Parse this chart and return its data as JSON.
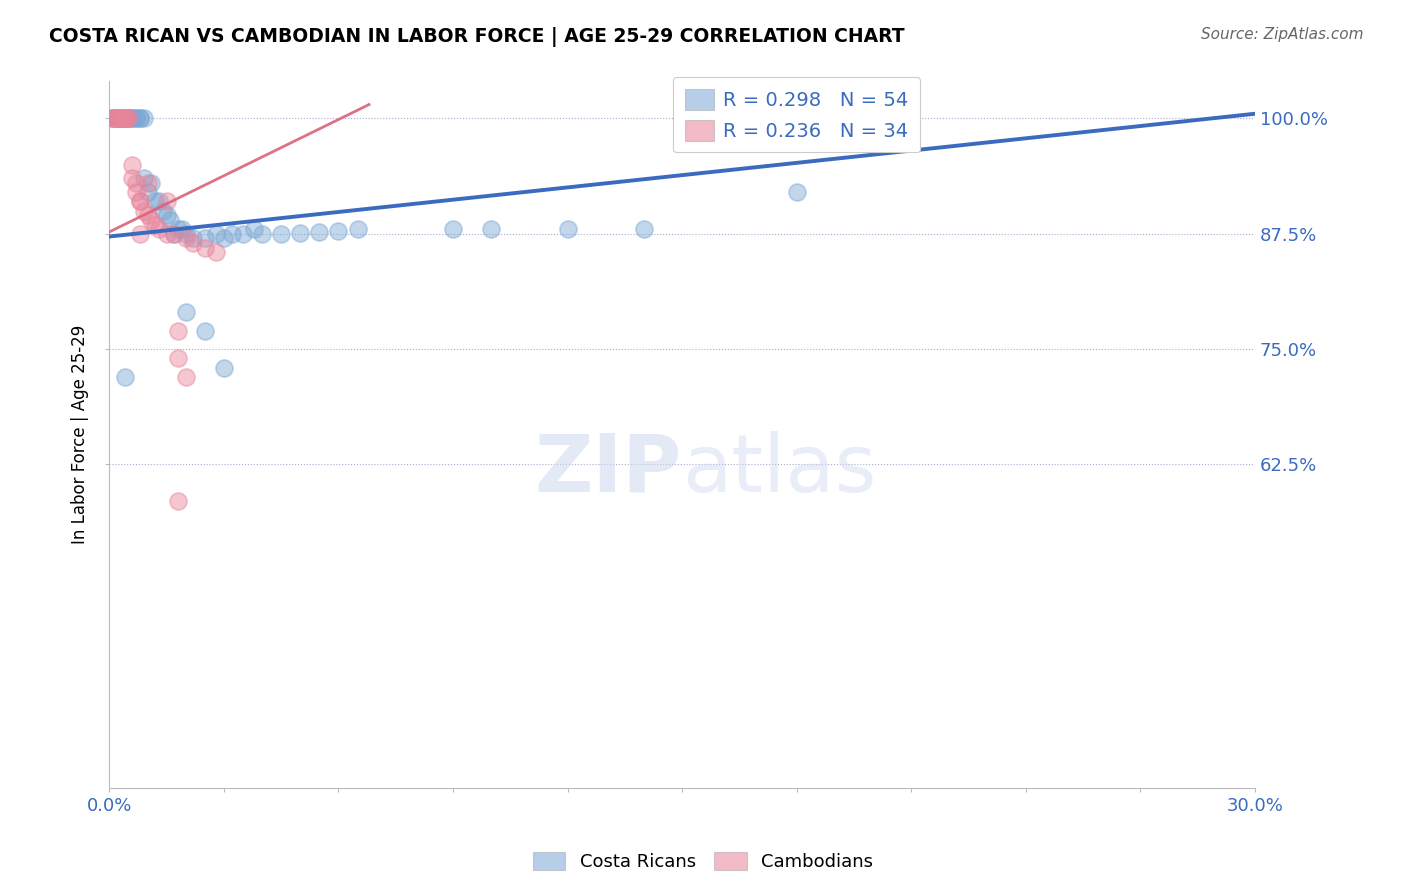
{
  "title": "COSTA RICAN VS CAMBODIAN IN LABOR FORCE | AGE 25-29 CORRELATION CHART",
  "source": "Source: ZipAtlas.com",
  "ylabel": "In Labor Force | Age 25-29",
  "legend_label_bottom": [
    "Costa Ricans",
    "Cambodians"
  ],
  "r_blue": 0.298,
  "n_blue": 54,
  "r_pink": 0.236,
  "n_pink": 34,
  "xlim": [
    0.0,
    0.3
  ],
  "ylim": [
    0.275,
    1.04
  ],
  "ytick_values": [
    1.0,
    0.875,
    0.75,
    0.625
  ],
  "ytick_labels": [
    "100.0%",
    "87.5%",
    "75.0%",
    "62.5%"
  ],
  "blue_color": "#7ba7d4",
  "pink_color": "#e8849a",
  "blue_line_color": "#3a6bbf",
  "pink_line_color": "#d9637a",
  "blue_line_x0": 0.0,
  "blue_line_y0": 0.872,
  "blue_line_x1": 0.3,
  "blue_line_y1": 1.005,
  "pink_line_x0": 0.0,
  "pink_line_y0": 0.877,
  "pink_line_x1": 0.068,
  "pink_line_y1": 1.015,
  "blue_points_x": [
    0.001,
    0.001,
    0.002,
    0.002,
    0.002,
    0.003,
    0.003,
    0.003,
    0.004,
    0.004,
    0.005,
    0.005,
    0.005,
    0.006,
    0.006,
    0.007,
    0.007,
    0.008,
    0.008,
    0.009,
    0.009,
    0.01,
    0.011,
    0.012,
    0.013,
    0.014,
    0.015,
    0.016,
    0.017,
    0.018,
    0.019,
    0.02,
    0.022,
    0.025,
    0.028,
    0.03,
    0.032,
    0.035,
    0.038,
    0.04,
    0.045,
    0.05,
    0.055,
    0.06,
    0.065,
    0.09,
    0.1,
    0.12,
    0.14,
    0.18,
    0.02,
    0.025,
    0.03,
    0.004
  ],
  "blue_points_y": [
    1.0,
    1.0,
    1.0,
    1.0,
    1.0,
    1.0,
    1.0,
    1.0,
    1.0,
    1.0,
    1.0,
    1.0,
    1.0,
    1.0,
    1.0,
    1.0,
    1.0,
    1.0,
    1.0,
    1.0,
    0.935,
    0.92,
    0.93,
    0.91,
    0.91,
    0.9,
    0.895,
    0.89,
    0.875,
    0.88,
    0.88,
    0.875,
    0.87,
    0.87,
    0.875,
    0.87,
    0.875,
    0.875,
    0.88,
    0.875,
    0.875,
    0.876,
    0.877,
    0.878,
    0.88,
    0.88,
    0.88,
    0.88,
    0.88,
    0.92,
    0.79,
    0.77,
    0.73,
    0.72
  ],
  "pink_points_x": [
    0.001,
    0.001,
    0.002,
    0.002,
    0.003,
    0.003,
    0.004,
    0.004,
    0.005,
    0.005,
    0.006,
    0.006,
    0.007,
    0.007,
    0.008,
    0.008,
    0.009,
    0.01,
    0.011,
    0.012,
    0.013,
    0.015,
    0.017,
    0.02,
    0.022,
    0.025,
    0.028,
    0.008,
    0.01,
    0.015,
    0.018,
    0.018,
    0.02,
    0.018
  ],
  "pink_points_y": [
    1.0,
    1.0,
    1.0,
    1.0,
    1.0,
    1.0,
    1.0,
    1.0,
    1.0,
    1.0,
    0.95,
    0.935,
    0.93,
    0.92,
    0.91,
    0.91,
    0.9,
    0.895,
    0.89,
    0.885,
    0.88,
    0.875,
    0.875,
    0.87,
    0.865,
    0.86,
    0.855,
    0.875,
    0.93,
    0.91,
    0.77,
    0.74,
    0.72,
    0.585
  ]
}
